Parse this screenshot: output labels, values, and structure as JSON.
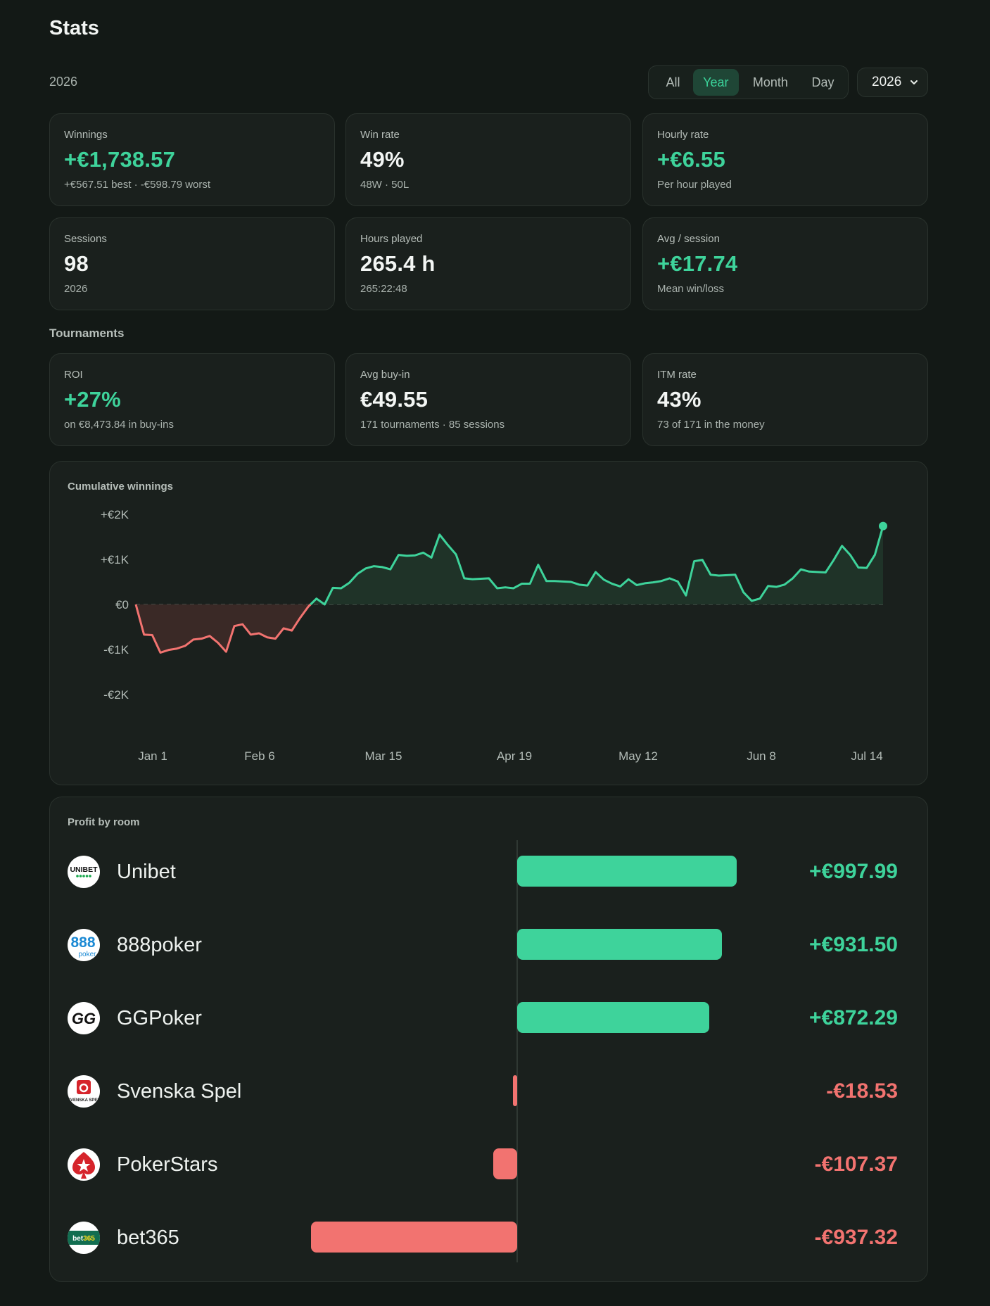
{
  "page": {
    "title": "Stats",
    "period_label": "2026"
  },
  "filters": {
    "segments": [
      {
        "label": "All",
        "active": false
      },
      {
        "label": "Year",
        "active": true
      },
      {
        "label": "Month",
        "active": false
      },
      {
        "label": "Day",
        "active": false
      }
    ],
    "year_select": {
      "value": "2026"
    }
  },
  "cards": [
    {
      "label": "Winnings",
      "value": "+€1,738.57",
      "sub": "+€567.51 best · -€598.79 worst",
      "positive": true
    },
    {
      "label": "Win rate",
      "value": "49%",
      "sub": "48W · 50L",
      "positive": false
    },
    {
      "label": "Hourly rate",
      "value": "+€6.55",
      "sub": "Per hour played",
      "positive": true
    },
    {
      "label": "Sessions",
      "value": "98",
      "sub": "2026",
      "positive": false
    },
    {
      "label": "Hours played",
      "value": "265.4 h",
      "sub": "265:22:48",
      "positive": false
    },
    {
      "label": "Avg / session",
      "value": "+€17.74",
      "sub": "Mean win/loss",
      "positive": true
    }
  ],
  "tournaments": {
    "label": "Tournaments",
    "cards": [
      {
        "label": "ROI",
        "value": "+27%",
        "sub": "on €8,473.84 in buy-ins",
        "positive": true
      },
      {
        "label": "Avg buy-in",
        "value": "€49.55",
        "sub": "171 tournaments · 85 sessions",
        "positive": false
      },
      {
        "label": "ITM rate",
        "value": "43%",
        "sub": "73 of 171 in the money",
        "positive": false
      }
    ]
  },
  "colors": {
    "positive": "#3ed39b",
    "negative": "#f27370",
    "accent_bg": "#1f4636"
  },
  "chart_data": {
    "type": "area",
    "title": "Cumulative winnings",
    "y_tick_labels": [
      "+€2K",
      "+€1K",
      "€0",
      "-€1K",
      "-€2K"
    ],
    "x_tick_labels": [
      "Jan 1",
      "Feb 6",
      "Mar 15",
      "Apr 19",
      "May 12",
      "Jun 8",
      "Jul 14"
    ],
    "ylim": [
      -2000,
      2000
    ],
    "x_unit": "session",
    "y_unit": "EUR",
    "grid": false,
    "series": [
      {
        "values": [
          0,
          -670,
          -680,
          -1070,
          -1010,
          -980,
          -920,
          -780,
          -760,
          -700,
          -850,
          -1050,
          -480,
          -440,
          -670,
          -640,
          -730,
          -760,
          -530,
          -580,
          -300,
          -50,
          130,
          0,
          370,
          360,
          480,
          680,
          800,
          850,
          830,
          780,
          1100,
          1080,
          1090,
          1150,
          1040,
          1550,
          1320,
          1110,
          580,
          560,
          570,
          580,
          360,
          380,
          360,
          460,
          460,
          880,
          520,
          520,
          510,
          500,
          440,
          420,
          720,
          550,
          460,
          400,
          560,
          430,
          470,
          490,
          520,
          580,
          510,
          200,
          960,
          990,
          660,
          640,
          650,
          660,
          270,
          80,
          130,
          410,
          390,
          440,
          580,
          780,
          730,
          720,
          710,
          990,
          1300,
          1100,
          820,
          810,
          1100,
          1740
        ]
      }
    ],
    "end_value": 1738.57
  },
  "rooms": {
    "title": "Profit by room",
    "items": [
      {
        "name": "Unibet",
        "value_label": "+€997.99",
        "value": 997.99,
        "logo": "unibet-logo"
      },
      {
        "name": "888poker",
        "value_label": "+€931.50",
        "value": 931.5,
        "logo": "888poker-logo"
      },
      {
        "name": "GGPoker",
        "value_label": "+€872.29",
        "value": 872.29,
        "logo": "ggpoker-logo"
      },
      {
        "name": "Svenska Spel",
        "value_label": "-€18.53",
        "value": -18.53,
        "logo": "svenska-spel-logo"
      },
      {
        "name": "PokerStars",
        "value_label": "-€107.37",
        "value": -107.37,
        "logo": "pokerstars-logo"
      },
      {
        "name": "bet365",
        "value_label": "-€937.32",
        "value": -937.32,
        "logo": "bet365-logo"
      }
    ]
  }
}
